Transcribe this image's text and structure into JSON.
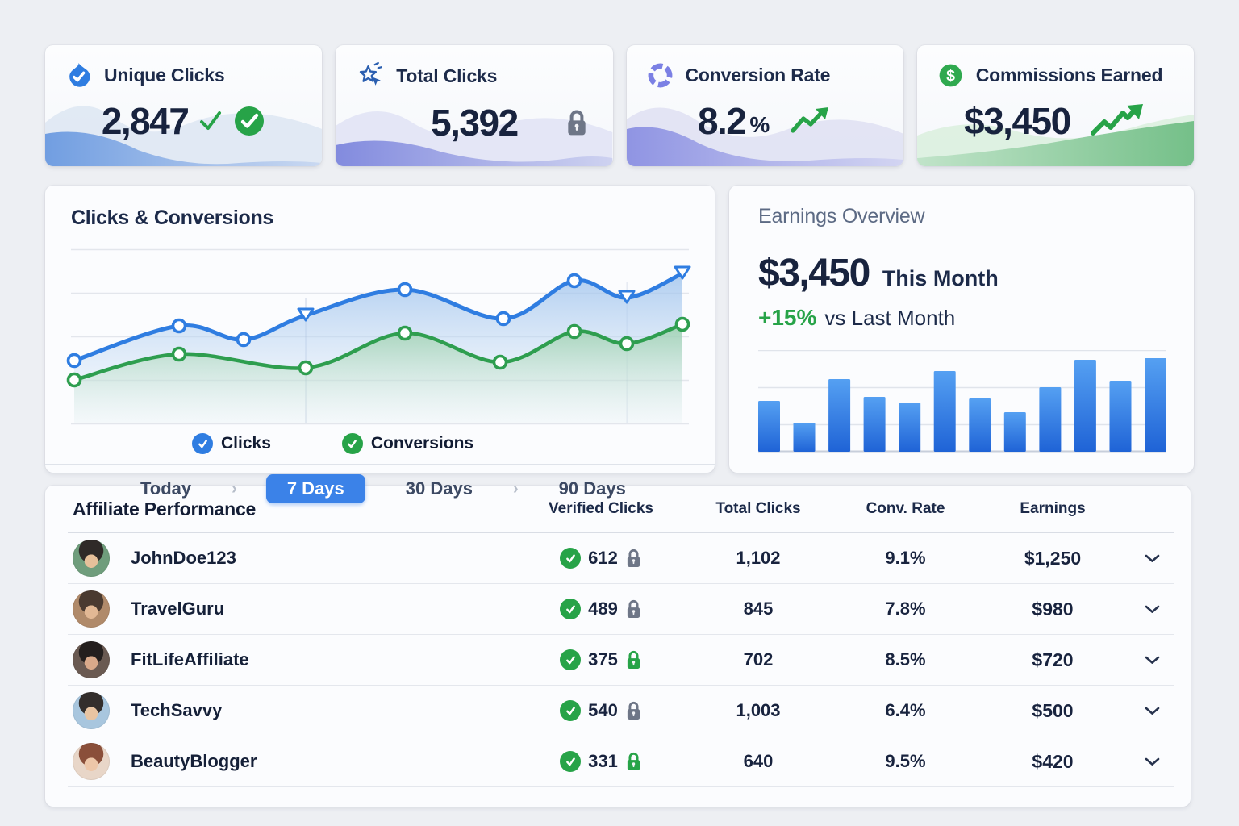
{
  "colors": {
    "accent_blue": "#3b82e8",
    "line_blue": "#2f7de1",
    "line_green": "#2e9e4f",
    "success_green": "#27a348",
    "lock_gray": "#6e7687",
    "navy_text": "#1c2a49",
    "page_bg": "#edeff3"
  },
  "stat_cards": [
    {
      "title": "Unique Clicks",
      "value": "2,847",
      "suffix": "",
      "icon": "flame-check-icon",
      "trailing": "check-and-badge",
      "theme": "blue"
    },
    {
      "title": "Total Clicks",
      "value": "5,392",
      "suffix": "",
      "icon": "click-star-icon",
      "trailing": "lock-gray",
      "theme": "indigo"
    },
    {
      "title": "Conversion Rate",
      "value": "8.2",
      "suffix": "%",
      "icon": "segmented-ring-icon",
      "trailing": "trend-up",
      "theme": "purple"
    },
    {
      "title": "Commissions Earned",
      "value": "$3,450",
      "suffix": "",
      "icon": "dollar-circle-icon",
      "trailing": "trend-up-zigzag",
      "theme": "green"
    }
  ],
  "clicks_chart": {
    "title": "Clicks & Conversions",
    "legend": [
      {
        "label": "Clicks",
        "color": "#2f7de1"
      },
      {
        "label": "Conversions",
        "color": "#27a348"
      }
    ],
    "tab_separator": "›",
    "tabs": [
      {
        "label": "Today",
        "active": false
      },
      {
        "label": "7 Days",
        "active": true
      },
      {
        "label": "30 Days",
        "active": false
      },
      {
        "label": "90 Days",
        "active": false
      }
    ],
    "chart_data": {
      "type": "line",
      "ylim": [
        0,
        100
      ],
      "grid": true,
      "series": [
        {
          "name": "Clicks",
          "color": "#2f7de1",
          "x_frac": [
            0.005,
            0.175,
            0.28,
            0.38,
            0.54,
            0.7,
            0.815,
            0.9,
            0.99
          ],
          "values": [
            36,
            56,
            48,
            62,
            77,
            60,
            82,
            72,
            86
          ],
          "markers": [
            "circle",
            "circle",
            "circle",
            "triangle",
            "circle",
            "circle",
            "circle",
            "triangle",
            "triangle"
          ]
        },
        {
          "name": "Conversions",
          "color": "#2e9e4f",
          "x_frac": [
            0.005,
            0.175,
            0.38,
            0.54,
            0.695,
            0.815,
            0.9,
            0.99
          ],
          "values": [
            25,
            40,
            32,
            52,
            35,
            53,
            46,
            57
          ],
          "markers": [
            "circle",
            "circle",
            "circle",
            "circle",
            "circle",
            "circle",
            "circle",
            "circle"
          ]
        }
      ]
    }
  },
  "earnings": {
    "title": "Earnings Overview",
    "amount": "$3,450",
    "amount_label": "This Month",
    "delta": "+15%",
    "delta_label": "vs Last Month",
    "chart_data": {
      "type": "bar",
      "values": [
        54,
        31,
        78,
        59,
        53,
        86,
        57,
        42,
        69,
        98,
        76,
        100
      ],
      "ylim": [
        0,
        100
      ],
      "bar_color_top": "#55a0f2",
      "bar_color_bottom": "#1f63d6"
    }
  },
  "table": {
    "title": "Affiliate Performance",
    "columns": [
      "Verified Clicks",
      "Total Clicks",
      "Conv. Rate",
      "Earnings"
    ],
    "rows": [
      {
        "name": "JohnDoe123",
        "verified": "612",
        "lock": "gray",
        "total": "1,102",
        "rate": "9.1%",
        "earnings": "$1,250",
        "avatar": {
          "bg": "#6f9d7c",
          "hair": "#2f2a28",
          "skin": "#e6c09a"
        }
      },
      {
        "name": "TravelGuru",
        "verified": "489",
        "lock": "gray",
        "total": "845",
        "rate": "7.8%",
        "earnings": "$980",
        "avatar": {
          "bg": "#b08a6a",
          "hair": "#4a3a30",
          "skin": "#e2b894"
        }
      },
      {
        "name": "FitLifeAffiliate",
        "verified": "375",
        "lock": "green",
        "total": "702",
        "rate": "8.5%",
        "earnings": "$720",
        "avatar": {
          "bg": "#6a5a52",
          "hair": "#241f1e",
          "skin": "#d9a98a"
        }
      },
      {
        "name": "TechSavvy",
        "verified": "540",
        "lock": "gray",
        "total": "1,003",
        "rate": "6.4%",
        "earnings": "$500",
        "avatar": {
          "bg": "#a8c6de",
          "hair": "#332e2c",
          "skin": "#e8c4a2"
        }
      },
      {
        "name": "BeautyBlogger",
        "verified": "331",
        "lock": "green",
        "total": "640",
        "rate": "9.5%",
        "earnings": "$420",
        "avatar": {
          "bg": "#e8d6c8",
          "hair": "#8a4f3a",
          "skin": "#edc6a8"
        }
      }
    ]
  }
}
